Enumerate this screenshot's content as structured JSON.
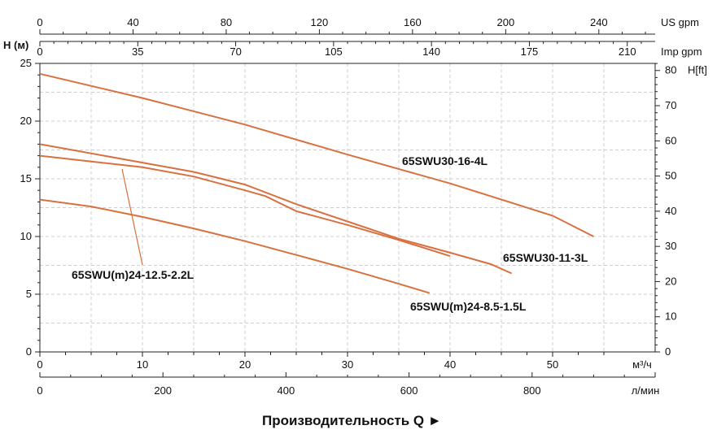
{
  "chart_data": {
    "type": "line",
    "xlabel": "м³/ч",
    "ylabel": "H (м)",
    "right_axis_label": "H[ft]",
    "xlim": [
      0,
      60
    ],
    "ylim": [
      0,
      25
    ],
    "xticks": [
      0,
      10,
      20,
      30,
      40,
      50
    ],
    "yticks": [
      0,
      5,
      10,
      15,
      20,
      25
    ],
    "grid": true,
    "secondary_axes": [
      {
        "position": "top",
        "label": "US gpm",
        "ticks": [
          0,
          40,
          80,
          120,
          160,
          200,
          240
        ]
      },
      {
        "position": "top-2",
        "label": "Imp gpm",
        "ticks": [
          0,
          35,
          70,
          105,
          140,
          175,
          210
        ]
      },
      {
        "position": "right",
        "label": "H[ft]",
        "ticks": [
          0,
          10,
          20,
          30,
          40,
          50,
          60,
          70,
          80
        ]
      },
      {
        "position": "bottom-2",
        "label": "л/мин",
        "ticks": [
          0,
          200,
          400,
          600,
          800
        ]
      }
    ],
    "series": [
      {
        "name": "65SWU30-16-4L",
        "x": [
          0,
          10,
          20,
          30,
          40,
          50,
          54
        ],
        "y": [
          24.1,
          22.0,
          19.7,
          17.1,
          14.6,
          11.8,
          10.0
        ]
      },
      {
        "name": "65SWU30-11-3L",
        "x": [
          0,
          10,
          15,
          20,
          25,
          30,
          35,
          40,
          44,
          46
        ],
        "y": [
          18.0,
          16.4,
          15.6,
          14.5,
          12.8,
          11.3,
          9.8,
          8.6,
          7.6,
          6.8
        ]
      },
      {
        "name": "65SWU(m)24-12.5-2.2L",
        "x": [
          0,
          10,
          15,
          20,
          22,
          25,
          30,
          35,
          40
        ],
        "y": [
          17.0,
          16.0,
          15.2,
          14.0,
          13.5,
          12.2,
          11.0,
          9.7,
          8.3
        ]
      },
      {
        "name": "65SWU(m)24-8.5-1.5L",
        "x": [
          0,
          5,
          10,
          15,
          20,
          25,
          30,
          35,
          38
        ],
        "y": [
          13.2,
          12.6,
          11.7,
          10.7,
          9.6,
          8.4,
          7.2,
          5.9,
          5.1
        ]
      }
    ],
    "footer": "Производительность Q  ►"
  }
}
